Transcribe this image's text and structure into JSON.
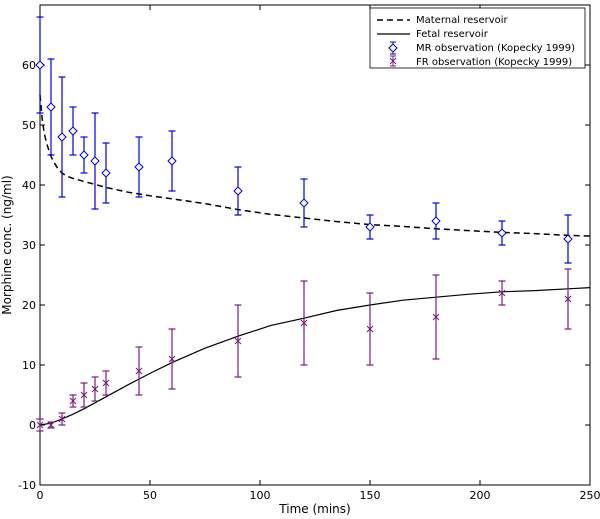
{
  "chart_data": {
    "type": "line",
    "title": "",
    "xlabel": "Time (mins)",
    "ylabel": "Morphine conc. (ng/ml)",
    "xlim": [
      0,
      250
    ],
    "ylim": [
      -10,
      70
    ],
    "xticks": [
      0,
      50,
      100,
      150,
      200,
      250
    ],
    "yticks": [
      -10,
      0,
      10,
      20,
      30,
      40,
      50,
      60
    ],
    "grid": false,
    "legend_position": "top-right",
    "colors": {
      "mr": "#0000ee",
      "fr": "#7a1e7e",
      "line": "#000000"
    },
    "series": [
      {
        "name": "Maternal reservoir",
        "kind": "line",
        "style": "dashed",
        "x": [
          0,
          1,
          2,
          3,
          4,
          5,
          6,
          8,
          10,
          12,
          15,
          20,
          25,
          30,
          40,
          50,
          60,
          75,
          90,
          105,
          120,
          135,
          150,
          165,
          180,
          195,
          210,
          225,
          240,
          250
        ],
        "y": [
          55,
          51,
          48.5,
          47,
          45.8,
          44.8,
          44,
          42.8,
          42,
          41.5,
          41.1,
          40.6,
          40.1,
          39.6,
          38.8,
          38.2,
          37.7,
          36.9,
          35.9,
          35.1,
          34.5,
          33.9,
          33.4,
          33.1,
          32.7,
          32.4,
          32.1,
          31.9,
          31.6,
          31.5
        ]
      },
      {
        "name": "Fetal reservoir",
        "kind": "line",
        "style": "solid",
        "x": [
          0,
          5,
          10,
          15,
          20,
          25,
          30,
          40,
          50,
          60,
          75,
          90,
          105,
          120,
          135,
          150,
          165,
          180,
          195,
          210,
          225,
          240,
          250
        ],
        "y": [
          0,
          0.3,
          1.0,
          1.8,
          2.7,
          3.7,
          4.7,
          6.7,
          8.6,
          10.4,
          12.8,
          14.8,
          16.6,
          17.8,
          19.1,
          20.0,
          20.8,
          21.3,
          21.8,
          22.2,
          22.4,
          22.7,
          22.9
        ]
      },
      {
        "name": "MR observation (Kopecky 1999)",
        "kind": "errorbar",
        "marker": "diamond",
        "x": [
          0,
          5,
          10,
          15,
          20,
          25,
          30,
          45,
          60,
          90,
          120,
          150,
          180,
          210,
          240
        ],
        "y": [
          60,
          53,
          48,
          49,
          45,
          44,
          42,
          43,
          44,
          39,
          37,
          33,
          34,
          32,
          31
        ],
        "err": [
          8,
          8,
          10,
          4,
          3,
          8,
          5,
          5,
          5,
          4,
          4,
          2,
          3,
          2,
          4
        ]
      },
      {
        "name": "FR observation (Kopecky 1999)",
        "kind": "errorbar",
        "marker": "x",
        "x": [
          0,
          5,
          10,
          15,
          20,
          25,
          30,
          45,
          60,
          90,
          120,
          150,
          180,
          210,
          240
        ],
        "y": [
          0,
          0,
          1,
          4,
          5,
          6,
          7,
          9,
          11,
          14,
          17,
          16,
          18,
          22,
          21
        ],
        "err": [
          1,
          0.5,
          1,
          1,
          2,
          2,
          2,
          4,
          5,
          6,
          7,
          6,
          7,
          2,
          5
        ]
      }
    ]
  }
}
